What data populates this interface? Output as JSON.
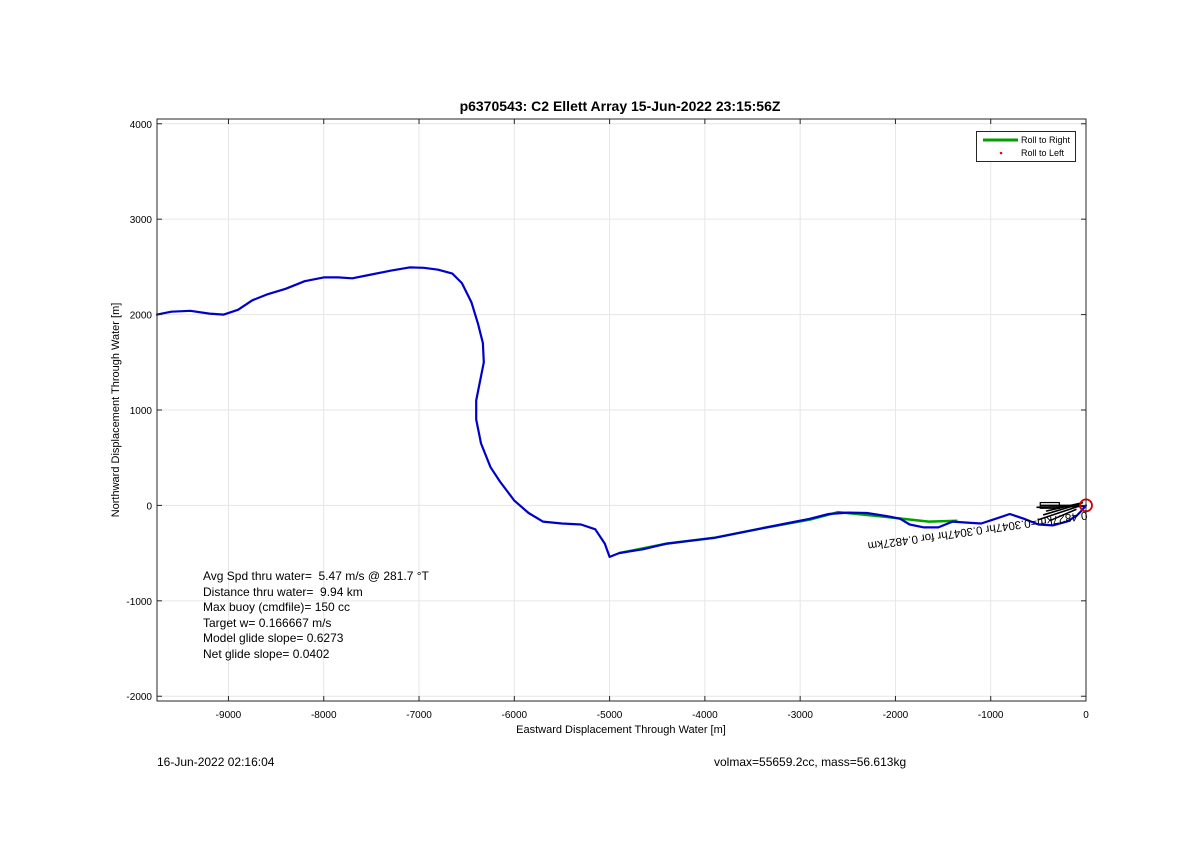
{
  "footer": {
    "datetime": "16-Jun-2022 02:16:04",
    "volmax_mass": "volmax=55659.2cc, mass=56.613kg"
  },
  "stats": [
    "Avg Spd thru water=  5.47 m/s @ 281.7 °T",
    "Distance thru water=  9.94 km",
    "Max buoy (cmdfile)= 150 cc",
    "Target w= 0.166667 m/s",
    "Model glide slope= 0.6273",
    "Net glide slope= 0.0402"
  ],
  "annotation": "0.4827km=0.3047hr 0.3047hr for 0.4827km",
  "colors": {
    "track": "#0000cc",
    "roll_right": "#00a000",
    "roll_left": "#ff0000",
    "marker": "#d40000",
    "grid": "#e6e6e6"
  },
  "chart_data": {
    "type": "line",
    "title": "p6370543: C2 Ellett Array 15-Jun-2022 23:15:56Z",
    "xlabel": "Eastward Displacement Through Water [m]",
    "ylabel": "Northward Displacement Through Water [m]",
    "xlim": [
      -9750,
      0
    ],
    "ylim": [
      -2050,
      4050
    ],
    "xticks": [
      -9000,
      -8000,
      -7000,
      -6000,
      -5000,
      -4000,
      -3000,
      -2000,
      -1000,
      0
    ],
    "yticks": [
      -2000,
      -1000,
      0,
      1000,
      2000,
      3000,
      4000
    ],
    "grid": true,
    "legend_location": "top-right",
    "series": [
      {
        "name": "Roll to Right",
        "points": [
          [
            -4900,
            -500
          ],
          [
            -4400,
            -400
          ],
          [
            -3900,
            -340
          ],
          [
            -3400,
            -240
          ],
          [
            -2900,
            -150
          ],
          [
            -2600,
            -70
          ],
          [
            -2100,
            -120
          ],
          [
            -1650,
            -170
          ],
          [
            -1350,
            -160
          ]
        ]
      },
      {
        "name": "Roll to Left",
        "points": []
      },
      {
        "name": "",
        "points": [
          [
            -9750,
            2000
          ],
          [
            -9600,
            2030
          ],
          [
            -9400,
            2040
          ],
          [
            -9200,
            2010
          ],
          [
            -9050,
            2000
          ],
          [
            -8900,
            2050
          ],
          [
            -8750,
            2150
          ],
          [
            -8600,
            2210
          ],
          [
            -8400,
            2270
          ],
          [
            -8200,
            2350
          ],
          [
            -8000,
            2390
          ],
          [
            -7850,
            2390
          ],
          [
            -7700,
            2380
          ],
          [
            -7500,
            2420
          ],
          [
            -7300,
            2460
          ],
          [
            -7100,
            2495
          ],
          [
            -6950,
            2490
          ],
          [
            -6800,
            2470
          ],
          [
            -6650,
            2430
          ],
          [
            -6550,
            2330
          ],
          [
            -6450,
            2130
          ],
          [
            -6380,
            1900
          ],
          [
            -6330,
            1700
          ],
          [
            -6320,
            1500
          ],
          [
            -6360,
            1300
          ],
          [
            -6400,
            1100
          ],
          [
            -6400,
            900
          ],
          [
            -6350,
            650
          ],
          [
            -6250,
            400
          ],
          [
            -6150,
            250
          ],
          [
            -6000,
            50
          ],
          [
            -5850,
            -80
          ],
          [
            -5700,
            -170
          ],
          [
            -5500,
            -190
          ],
          [
            -5300,
            -200
          ],
          [
            -5150,
            -250
          ],
          [
            -5050,
            -400
          ],
          [
            -5000,
            -540
          ],
          [
            -4900,
            -500
          ],
          [
            -4650,
            -460
          ],
          [
            -4400,
            -400
          ],
          [
            -4150,
            -370
          ],
          [
            -3900,
            -340
          ],
          [
            -3650,
            -290
          ],
          [
            -3400,
            -240
          ],
          [
            -3150,
            -190
          ],
          [
            -2900,
            -140
          ],
          [
            -2700,
            -90
          ],
          [
            -2500,
            -75
          ],
          [
            -2300,
            -80
          ],
          [
            -2100,
            -110
          ],
          [
            -1950,
            -140
          ],
          [
            -1850,
            -200
          ],
          [
            -1700,
            -230
          ],
          [
            -1550,
            -230
          ],
          [
            -1400,
            -170
          ],
          [
            -1250,
            -180
          ],
          [
            -1100,
            -190
          ],
          [
            -950,
            -140
          ],
          [
            -800,
            -90
          ],
          [
            -650,
            -140
          ],
          [
            -500,
            -200
          ],
          [
            -350,
            -210
          ],
          [
            -200,
            -170
          ],
          [
            -100,
            -110
          ],
          [
            -50,
            -60
          ],
          [
            0,
            0
          ]
        ]
      }
    ],
    "heading_vectors": [
      [
        [
          -480,
          0
        ],
        [
          -60,
          0
        ]
      ],
      [
        [
          -500,
          -150
        ],
        [
          -80,
          -10
        ]
      ],
      [
        [
          -450,
          -100
        ],
        [
          -50,
          20
        ]
      ],
      [
        [
          -420,
          -60
        ],
        [
          -30,
          30
        ]
      ],
      [
        [
          -380,
          -160
        ],
        [
          -100,
          -40
        ]
      ],
      [
        [
          -520,
          -20
        ],
        [
          -20,
          -10
        ]
      ]
    ],
    "marker": [
      0,
      0
    ]
  }
}
